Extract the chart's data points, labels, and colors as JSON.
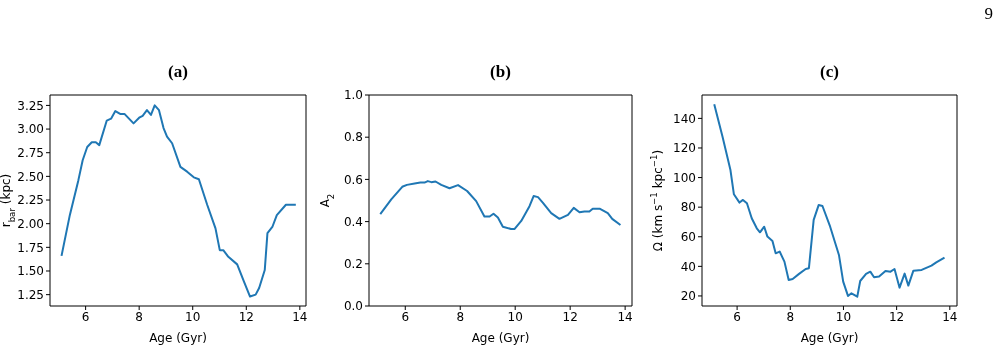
{
  "chart_data": [
    {
      "type": "line",
      "title": "(a)",
      "xlabel": "Age (Gyr)",
      "ylabel": "r$_{bar}$ (kpc)",
      "xlim": [
        4.67,
        14.23
      ],
      "xticks": [
        6,
        8,
        10,
        12,
        14
      ],
      "ylim": [
        1.13,
        3.36
      ],
      "yticks": [
        {
          "value": 1.25,
          "label": "1.25"
        },
        {
          "value": 1.5,
          "label": "1.50"
        },
        {
          "value": 1.75,
          "label": "1.75"
        },
        {
          "value": 2,
          "label": "2.00"
        },
        {
          "value": 2.25,
          "label": "2.25"
        },
        {
          "value": 2.5,
          "label": "2.50"
        },
        {
          "value": 2.75,
          "label": "2.75"
        },
        {
          "value": 3,
          "label": "3.00"
        },
        {
          "value": 3.25,
          "label": "3.25"
        }
      ],
      "series": [
        {
          "color": "#1f77b4",
          "x": [
            5.1,
            5.41,
            5.73,
            5.89,
            6.06,
            6.23,
            6.38,
            6.51,
            6.79,
            6.95,
            7.11,
            7.29,
            7.45,
            7.79,
            8.0,
            8.13,
            8.29,
            8.44,
            8.58,
            8.74,
            8.91,
            9.04,
            9.23,
            9.54,
            9.79,
            10.04,
            10.23,
            10.54,
            10.85,
            11.01,
            11.14,
            11.33,
            11.66,
            11.91,
            12.14,
            12.35,
            12.48,
            12.69,
            12.79,
            12.98,
            13.14,
            13.48,
            13.85
          ],
          "values": [
            1.66,
            2.09,
            2.46,
            2.67,
            2.81,
            2.86,
            2.86,
            2.83,
            3.09,
            3.11,
            3.19,
            3.16,
            3.16,
            3.06,
            3.12,
            3.14,
            3.2,
            3.15,
            3.25,
            3.2,
            3.01,
            2.92,
            2.85,
            2.6,
            2.55,
            2.49,
            2.47,
            2.2,
            1.95,
            1.72,
            1.72,
            1.65,
            1.57,
            1.39,
            1.23,
            1.25,
            1.32,
            1.51,
            1.9,
            1.97,
            2.09,
            2.2,
            2.2
          ]
        }
      ]
    },
    {
      "type": "line",
      "title": "(b)",
      "xlabel": "Age (Gyr)",
      "ylabel": "A$_{2}$",
      "xlim": [
        4.68,
        14.25
      ],
      "xticks": [
        6,
        8,
        10,
        12,
        14
      ],
      "ylim": [
        0,
        1
      ],
      "yticks": [
        {
          "value": 0,
          "label": "0.0"
        },
        {
          "value": 0.2,
          "label": "0.2"
        },
        {
          "value": 0.4,
          "label": "0.4"
        },
        {
          "value": 0.6,
          "label": "0.6"
        },
        {
          "value": 0.8,
          "label": "0.8"
        },
        {
          "value": 1,
          "label": "1.0"
        }
      ],
      "series": [
        {
          "color": "#1f77b4",
          "x": [
            5.09,
            5.49,
            5.89,
            6.06,
            6.34,
            6.55,
            6.7,
            6.82,
            6.95,
            7.1,
            7.31,
            7.61,
            7.92,
            8.25,
            8.58,
            8.88,
            9.07,
            9.21,
            9.37,
            9.55,
            9.85,
            9.98,
            10.22,
            10.52,
            10.67,
            10.83,
            11.01,
            11.31,
            11.61,
            11.92,
            12.13,
            12.34,
            12.52,
            12.7,
            12.82,
            13.07,
            13.37,
            13.53,
            13.83
          ],
          "values": [
            0.435,
            0.505,
            0.565,
            0.574,
            0.581,
            0.585,
            0.585,
            0.592,
            0.587,
            0.59,
            0.574,
            0.558,
            0.573,
            0.545,
            0.497,
            0.424,
            0.424,
            0.437,
            0.419,
            0.376,
            0.365,
            0.365,
            0.403,
            0.473,
            0.521,
            0.516,
            0.489,
            0.44,
            0.413,
            0.432,
            0.465,
            0.444,
            0.448,
            0.448,
            0.461,
            0.461,
            0.44,
            0.413,
            0.384
          ]
        }
      ]
    },
    {
      "type": "line",
      "title": "(c)",
      "xlabel": "Age (Gyr)",
      "ylabel": "Ω (km s$^{−1}$ kpc$^{−1}$)",
      "xlim": [
        4.68,
        14.27
      ],
      "xticks": [
        6,
        8,
        10,
        12,
        14
      ],
      "ylim": [
        13.2,
        155.8
      ],
      "yticks": [
        20,
        40,
        60,
        80,
        100,
        120,
        140
      ],
      "annotations": [
        "9"
      ],
      "series": [
        {
          "color": "#1f77b4",
          "x": [
            5.14,
            5.45,
            5.75,
            5.88,
            6.09,
            6.22,
            6.37,
            6.55,
            6.74,
            6.86,
            7.02,
            7.14,
            7.33,
            7.45,
            7.6,
            7.78,
            7.94,
            8.09,
            8.33,
            8.58,
            8.7,
            8.88,
            9.07,
            9.21,
            9.5,
            9.83,
            9.99,
            10.17,
            10.3,
            10.52,
            10.63,
            10.85,
            11.01,
            11.15,
            11.34,
            11.58,
            11.77,
            11.92,
            12.11,
            12.3,
            12.44,
            12.63,
            12.94,
            13.31,
            13.49,
            13.8
          ],
          "values": [
            149.5,
            127.7,
            105.1,
            88.7,
            83.1,
            84.9,
            82.6,
            72.5,
            65.7,
            63.0,
            66.8,
            60.1,
            57.2,
            48.8,
            50.0,
            43.2,
            30.8,
            31.5,
            34.9,
            38.2,
            38.7,
            71.4,
            81.5,
            80.8,
            66.8,
            47.7,
            29.7,
            20.0,
            21.8,
            19.5,
            30.1,
            34.9,
            36.4,
            32.6,
            33.1,
            36.9,
            36.4,
            38.2,
            25.6,
            35.1,
            27.0,
            37.1,
            37.6,
            40.5,
            42.7,
            45.9
          ]
        }
      ]
    }
  ]
}
